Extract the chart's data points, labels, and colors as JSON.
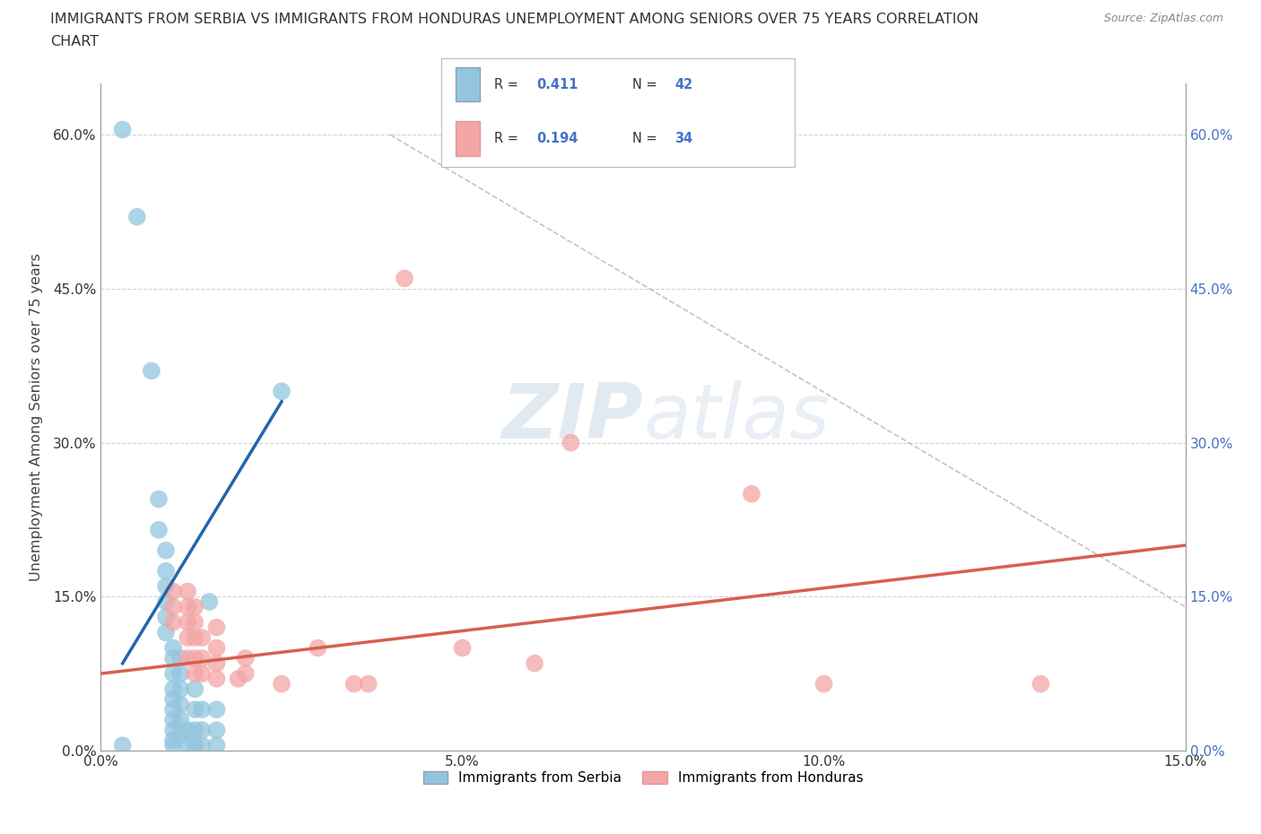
{
  "title_line1": "IMMIGRANTS FROM SERBIA VS IMMIGRANTS FROM HONDURAS UNEMPLOYMENT AMONG SENIORS OVER 75 YEARS CORRELATION",
  "title_line2": "CHART",
  "source": "Source: ZipAtlas.com",
  "ylabel": "Unemployment Among Seniors over 75 years",
  "xlim": [
    0.0,
    0.15
  ],
  "ylim": [
    0.0,
    0.65
  ],
  "xticks": [
    0.0,
    0.05,
    0.1,
    0.15
  ],
  "yticks": [
    0.0,
    0.15,
    0.3,
    0.45,
    0.6
  ],
  "xtick_labels": [
    "0.0%",
    "5.0%",
    "10.0%",
    "15.0%"
  ],
  "ytick_labels": [
    "0.0%",
    "15.0%",
    "30.0%",
    "45.0%",
    "60.0%"
  ],
  "serbia_color": "#92c5de",
  "honduras_color": "#f4a5a5",
  "serbia_line_color": "#2166ac",
  "honduras_line_color": "#d6604d",
  "background_color": "#ffffff",
  "grid_color": "#c8c8c8",
  "tick_color": "#4472c4",
  "R_serbia": "0.411",
  "N_serbia": "42",
  "R_honduras": "0.194",
  "N_honduras": "34",
  "serbia_scatter": [
    [
      0.003,
      0.605
    ],
    [
      0.005,
      0.52
    ],
    [
      0.007,
      0.37
    ],
    [
      0.008,
      0.245
    ],
    [
      0.008,
      0.215
    ],
    [
      0.009,
      0.195
    ],
    [
      0.009,
      0.175
    ],
    [
      0.009,
      0.16
    ],
    [
      0.009,
      0.145
    ],
    [
      0.009,
      0.13
    ],
    [
      0.009,
      0.115
    ],
    [
      0.01,
      0.1
    ],
    [
      0.01,
      0.09
    ],
    [
      0.01,
      0.075
    ],
    [
      0.01,
      0.06
    ],
    [
      0.01,
      0.05
    ],
    [
      0.01,
      0.04
    ],
    [
      0.01,
      0.03
    ],
    [
      0.01,
      0.02
    ],
    [
      0.01,
      0.01
    ],
    [
      0.01,
      0.005
    ],
    [
      0.011,
      0.09
    ],
    [
      0.011,
      0.075
    ],
    [
      0.011,
      0.06
    ],
    [
      0.011,
      0.045
    ],
    [
      0.011,
      0.03
    ],
    [
      0.011,
      0.015
    ],
    [
      0.012,
      0.005
    ],
    [
      0.012,
      0.02
    ],
    [
      0.013,
      0.005
    ],
    [
      0.013,
      0.02
    ],
    [
      0.013,
      0.04
    ],
    [
      0.013,
      0.06
    ],
    [
      0.014,
      0.005
    ],
    [
      0.014,
      0.02
    ],
    [
      0.014,
      0.04
    ],
    [
      0.015,
      0.145
    ],
    [
      0.016,
      0.005
    ],
    [
      0.016,
      0.02
    ],
    [
      0.016,
      0.04
    ],
    [
      0.025,
      0.35
    ],
    [
      0.003,
      0.005
    ]
  ],
  "honduras_scatter": [
    [
      0.01,
      0.155
    ],
    [
      0.01,
      0.14
    ],
    [
      0.01,
      0.125
    ],
    [
      0.012,
      0.155
    ],
    [
      0.012,
      0.14
    ],
    [
      0.012,
      0.125
    ],
    [
      0.012,
      0.11
    ],
    [
      0.012,
      0.09
    ],
    [
      0.013,
      0.14
    ],
    [
      0.013,
      0.125
    ],
    [
      0.013,
      0.11
    ],
    [
      0.013,
      0.09
    ],
    [
      0.013,
      0.075
    ],
    [
      0.014,
      0.11
    ],
    [
      0.014,
      0.09
    ],
    [
      0.014,
      0.075
    ],
    [
      0.016,
      0.12
    ],
    [
      0.016,
      0.1
    ],
    [
      0.016,
      0.085
    ],
    [
      0.016,
      0.07
    ],
    [
      0.019,
      0.07
    ],
    [
      0.02,
      0.09
    ],
    [
      0.02,
      0.075
    ],
    [
      0.025,
      0.065
    ],
    [
      0.03,
      0.1
    ],
    [
      0.035,
      0.065
    ],
    [
      0.037,
      0.065
    ],
    [
      0.042,
      0.46
    ],
    [
      0.05,
      0.1
    ],
    [
      0.06,
      0.085
    ],
    [
      0.065,
      0.3
    ],
    [
      0.09,
      0.25
    ],
    [
      0.1,
      0.065
    ],
    [
      0.13,
      0.065
    ]
  ],
  "serbia_line_x": [
    0.003,
    0.025
  ],
  "serbia_line_y": [
    0.085,
    0.34
  ],
  "honduras_line_x": [
    0.0,
    0.15
  ],
  "honduras_line_y": [
    0.075,
    0.2
  ],
  "diag_line_x": [
    0.04,
    0.15
  ],
  "diag_line_y": [
    0.6,
    0.14
  ]
}
